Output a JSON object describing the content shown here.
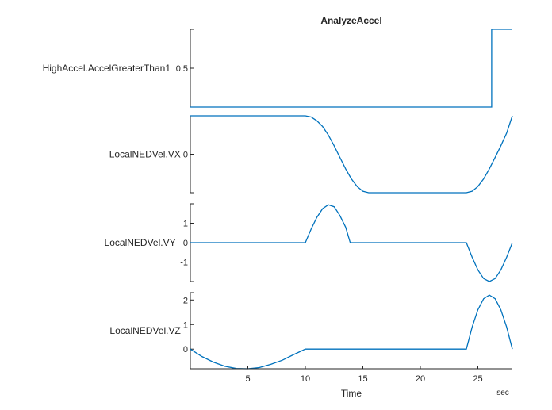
{
  "window": {
    "title": "AnalyzeAccel"
  },
  "chart_data": {
    "type": "line",
    "title": "AnalyzeAccel",
    "xlabel": "Time",
    "x_unit": "sec",
    "xlim": [
      0,
      28
    ],
    "xticks": [
      5,
      10,
      15,
      20,
      25
    ],
    "grid": false,
    "color": "#0072BD",
    "panels": [
      {
        "ylabel": "HighAccel.AccelGreaterThan1",
        "ylim": [
          0,
          1
        ],
        "yticks": [
          {
            "v": 0.5,
            "label": "0.5"
          }
        ],
        "points": [
          [
            0,
            0
          ],
          [
            26.2,
            0
          ],
          [
            26.2,
            1
          ],
          [
            28,
            1
          ]
        ]
      },
      {
        "ylabel": "LocalNEDVel.VX",
        "ylim": [
          -1,
          1
        ],
        "yticks": [
          {
            "v": 0,
            "label": "0"
          }
        ],
        "points": [
          [
            0,
            1
          ],
          [
            10,
            1
          ],
          [
            10.5,
            0.97
          ],
          [
            11,
            0.87
          ],
          [
            11.5,
            0.72
          ],
          [
            12,
            0.5
          ],
          [
            12.5,
            0.22
          ],
          [
            13,
            -0.08
          ],
          [
            13.5,
            -0.38
          ],
          [
            14,
            -0.64
          ],
          [
            14.5,
            -0.84
          ],
          [
            15,
            -0.96
          ],
          [
            15.5,
            -1
          ],
          [
            24,
            -1
          ],
          [
            24.5,
            -0.96
          ],
          [
            25,
            -0.84
          ],
          [
            25.5,
            -0.64
          ],
          [
            26,
            -0.38
          ],
          [
            26.5,
            -0.08
          ],
          [
            27,
            0.22
          ],
          [
            27.5,
            0.55
          ],
          [
            28,
            1
          ]
        ]
      },
      {
        "ylabel": "LocalNEDVel.VY",
        "ylim": [
          -2,
          2
        ],
        "yticks": [
          {
            "v": 1,
            "label": "1"
          },
          {
            "v": 0,
            "label": "0"
          },
          {
            "v": -1,
            "label": "-1"
          }
        ],
        "points": [
          [
            0,
            0
          ],
          [
            10,
            0
          ],
          [
            10.5,
            0.7
          ],
          [
            11,
            1.3
          ],
          [
            11.5,
            1.75
          ],
          [
            12,
            1.95
          ],
          [
            12.5,
            1.85
          ],
          [
            13,
            1.4
          ],
          [
            13.5,
            0.8
          ],
          [
            13.9,
            0
          ],
          [
            24,
            0
          ],
          [
            24.5,
            -0.75
          ],
          [
            25,
            -1.4
          ],
          [
            25.5,
            -1.85
          ],
          [
            26,
            -2
          ],
          [
            26.5,
            -1.85
          ],
          [
            27,
            -1.4
          ],
          [
            27.5,
            -0.75
          ],
          [
            28,
            0
          ]
        ]
      },
      {
        "ylabel": "LocalNEDVel.VZ",
        "ylim": [
          -0.8,
          2.3
        ],
        "yticks": [
          {
            "v": 2,
            "label": "2"
          },
          {
            "v": 1,
            "label": "1"
          },
          {
            "v": 0,
            "label": "0"
          }
        ],
        "points": [
          [
            0,
            0
          ],
          [
            1,
            -0.3
          ],
          [
            2,
            -0.53
          ],
          [
            3,
            -0.7
          ],
          [
            4,
            -0.79
          ],
          [
            5,
            -0.8
          ],
          [
            6,
            -0.75
          ],
          [
            7,
            -0.62
          ],
          [
            8,
            -0.45
          ],
          [
            9,
            -0.22
          ],
          [
            10,
            0
          ],
          [
            24,
            0
          ],
          [
            24.5,
            0.9
          ],
          [
            25,
            1.6
          ],
          [
            25.5,
            2.05
          ],
          [
            26,
            2.2
          ],
          [
            26.5,
            2.05
          ],
          [
            27,
            1.6
          ],
          [
            27.5,
            0.9
          ],
          [
            28,
            0
          ]
        ]
      }
    ]
  }
}
